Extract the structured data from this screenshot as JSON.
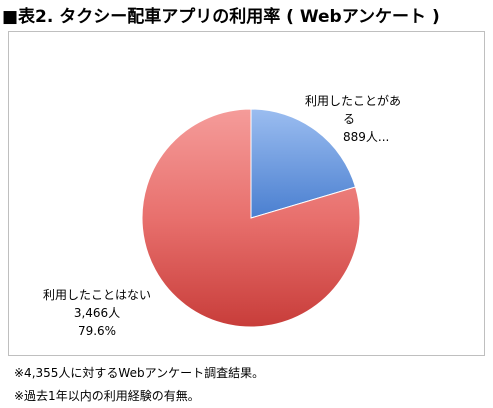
{
  "title": "■表2. タクシー配車アプリの利用率 ( Webアンケート )",
  "chart_data": {
    "type": "pie",
    "title": "",
    "slices": [
      {
        "label_lines": [
          "利用したことがあ",
          "る",
          "889人..."
        ],
        "value": 889,
        "color": "#4f81bd"
      },
      {
        "label_lines": [
          "利用したことはない",
          "3,466人",
          "79.6%"
        ],
        "value": 3466,
        "percent": 79.6,
        "color": "#c0504d"
      }
    ]
  },
  "notes": [
    "※4,355人に対するWebアンケート調査結果。",
    "※過去1年以内の利用経験の有無。"
  ]
}
